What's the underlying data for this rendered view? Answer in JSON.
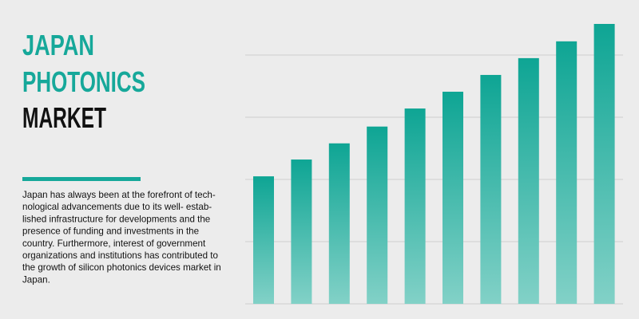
{
  "title_lines": [
    {
      "text": "JAPAN",
      "color": "#16a89a"
    },
    {
      "text": "PHOTONICS",
      "color": "#16a89a"
    },
    {
      "text": "MARKET",
      "color": "#111111"
    }
  ],
  "description_lines": [
    "Japan has always been at the forefront of tech-",
    "nological advancements due to its well- estab-",
    "lished infrastructure for developments and the",
    "presence of funding and investments in the",
    "country. Furthermore, interest of government",
    "organizations and institutions has contributed to",
    "the growth of silicon photonics devices market in",
    "Japan."
  ],
  "chart_data": {
    "type": "bar",
    "values": [
      2.05,
      2.32,
      2.58,
      2.85,
      3.14,
      3.41,
      3.68,
      3.95,
      4.22,
      4.5
    ],
    "gradient": [
      "#0ea594",
      "#82d1c7"
    ],
    "ylim": [
      0,
      4.5
    ],
    "yticks": [
      0,
      1,
      2,
      3,
      4
    ],
    "grid": true
  }
}
